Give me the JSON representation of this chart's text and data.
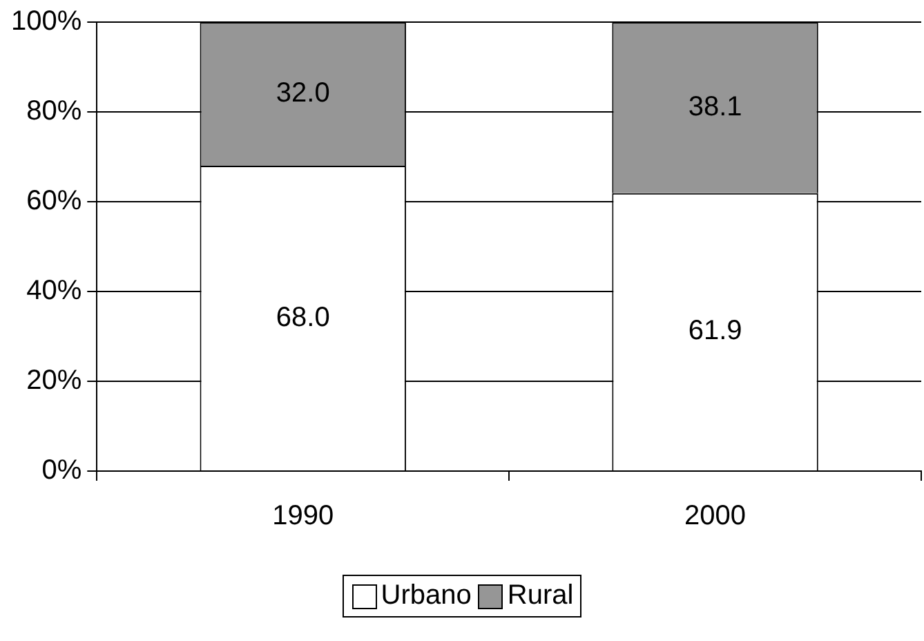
{
  "chart_data": {
    "type": "bar",
    "stacked": true,
    "categories": [
      "1990",
      "2000"
    ],
    "series": [
      {
        "name": "Urbano",
        "color": "#ffffff",
        "values": [
          68.0,
          61.9
        ],
        "value_labels": [
          "68.0",
          "61.9"
        ]
      },
      {
        "name": "Rural",
        "color": "#969696",
        "values": [
          32.0,
          38.1
        ],
        "value_labels": [
          "32.0",
          "38.1"
        ]
      }
    ],
    "ylim": [
      0,
      100
    ],
    "yticks": [
      {
        "value": 0,
        "label": "0%"
      },
      {
        "value": 20,
        "label": "20%"
      },
      {
        "value": 40,
        "label": "40%"
      },
      {
        "value": 60,
        "label": "60%"
      },
      {
        "value": 80,
        "label": "80%"
      },
      {
        "value": 100,
        "label": "100%"
      }
    ],
    "grid": "y",
    "legend": "bottom"
  }
}
